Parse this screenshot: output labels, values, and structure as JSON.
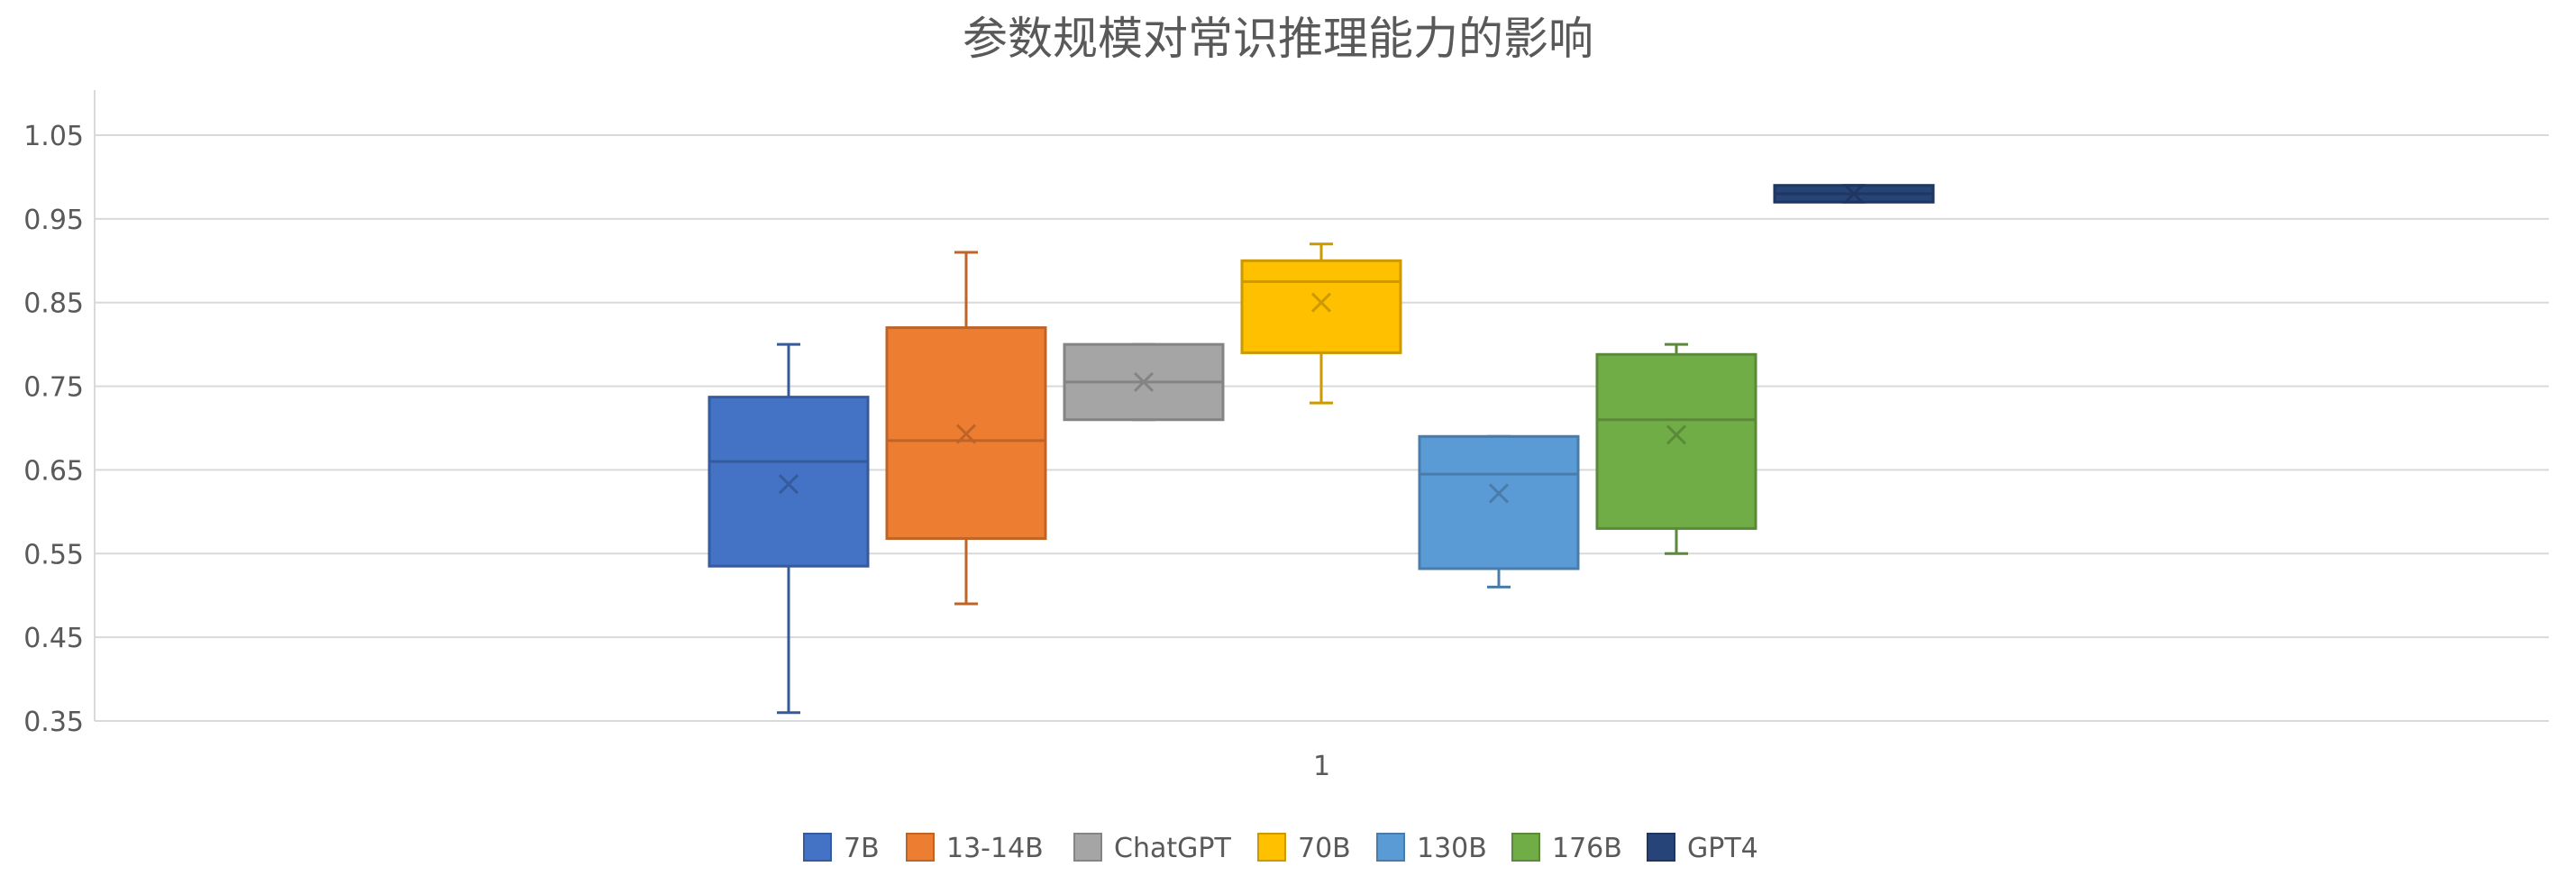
{
  "chart_data": {
    "type": "box",
    "title": "参数规模对常识推理能力的影响",
    "xlabel": "",
    "ylabel": "",
    "categories": [
      "1"
    ],
    "ylim": [
      0.35,
      1.05
    ],
    "y_ticks": [
      0.35,
      0.45,
      0.55,
      0.65,
      0.75,
      0.85,
      0.95,
      1.05
    ],
    "y_tick_labels": [
      "0.35",
      "0.45",
      "0.55",
      "0.65",
      "0.75",
      "0.85",
      "0.95",
      "1.05"
    ],
    "grid": true,
    "legend_position": "bottom",
    "series": [
      {
        "name": "7B",
        "color": "#4472C4",
        "min": 0.36,
        "q1": 0.535,
        "median": 0.66,
        "q3": 0.737,
        "max": 0.8,
        "mean": 0.633
      },
      {
        "name": "13-14B",
        "color": "#ED7D31",
        "min": 0.49,
        "q1": 0.568,
        "median": 0.685,
        "q3": 0.82,
        "max": 0.91,
        "mean": 0.693
      },
      {
        "name": "ChatGPT",
        "color": "#A5A5A5",
        "min": 0.71,
        "q1": 0.71,
        "median": 0.755,
        "q3": 0.8,
        "max": 0.8,
        "mean": 0.755
      },
      {
        "name": "70B",
        "color": "#FFC000",
        "min": 0.73,
        "q1": 0.79,
        "median": 0.875,
        "q3": 0.9,
        "max": 0.92,
        "mean": 0.85
      },
      {
        "name": "130B",
        "color": "#5B9BD5",
        "min": 0.51,
        "q1": 0.532,
        "median": 0.645,
        "q3": 0.69,
        "max": 0.69,
        "mean": 0.622
      },
      {
        "name": "176B",
        "color": "#70AD47",
        "min": 0.55,
        "q1": 0.58,
        "median": 0.71,
        "q3": 0.788,
        "max": 0.8,
        "mean": 0.692
      },
      {
        "name": "GPT4",
        "color": "#264478",
        "min": 0.97,
        "q1": 0.97,
        "median": 0.98,
        "q3": 0.99,
        "max": 0.99,
        "mean": 0.98
      }
    ]
  }
}
